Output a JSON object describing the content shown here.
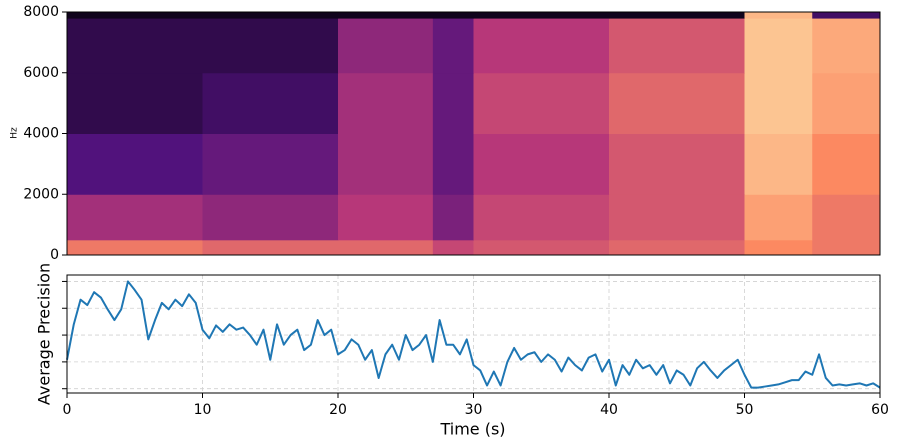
{
  "chart_data": [
    {
      "type": "heatmap",
      "ylabel": "Hz",
      "ylim": [
        0,
        8000
      ],
      "yticks": [
        0,
        2000,
        4000,
        6000,
        8000
      ],
      "xlim": [
        0,
        60
      ],
      "xbins": [
        0,
        10,
        20,
        27,
        30,
        40,
        50,
        55,
        60
      ],
      "ybins": [
        0,
        500,
        2000,
        4000,
        6000,
        7800,
        8000
      ],
      "colormap": [
        "#000004",
        "#51127c",
        "#b73779",
        "#fc8961",
        "#fcfdbf"
      ],
      "z": [
        [
          0.7,
          0.65,
          0.65,
          0.55,
          0.6,
          0.65,
          0.75,
          0.7
        ],
        [
          0.45,
          0.4,
          0.5,
          0.35,
          0.55,
          0.6,
          0.8,
          0.7
        ],
        [
          0.25,
          0.3,
          0.45,
          0.3,
          0.5,
          0.6,
          0.85,
          0.75
        ],
        [
          0.15,
          0.2,
          0.45,
          0.3,
          0.55,
          0.65,
          0.88,
          0.8
        ],
        [
          0.15,
          0.15,
          0.4,
          0.3,
          0.5,
          0.6,
          0.88,
          0.82
        ],
        [
          0.05,
          0.05,
          0.05,
          0.05,
          0.05,
          0.05,
          0.85,
          0.2
        ]
      ]
    },
    {
      "type": "line",
      "xlabel": "Time (s)",
      "ylabel": "Average Precision",
      "xlim": [
        0,
        60
      ],
      "xticks": [
        0,
        10,
        20,
        30,
        40,
        50,
        60
      ],
      "ylim": [
        -0.04,
        1.06
      ],
      "yticks": [
        0,
        0.25,
        0.5,
        0.75,
        1
      ],
      "show_ytick_labels": false,
      "grid": true,
      "x": [
        0,
        0.5,
        1,
        1.5,
        2,
        2.5,
        3,
        3.5,
        4,
        4.5,
        5,
        5.5,
        6,
        6.5,
        7,
        7.5,
        8,
        8.5,
        9,
        9.5,
        10,
        10.5,
        11,
        11.5,
        12,
        12.5,
        13,
        13.5,
        14,
        14.5,
        15,
        15.5,
        16,
        16.5,
        17,
        17.5,
        18,
        18.5,
        19,
        19.5,
        20,
        20.5,
        21,
        21.5,
        22,
        22.5,
        23,
        23.5,
        24,
        24.5,
        25,
        25.5,
        26,
        26.5,
        27,
        27.5,
        28,
        28.5,
        29,
        29.5,
        30,
        30.5,
        31,
        31.5,
        32,
        32.5,
        33,
        33.5,
        34,
        34.5,
        35,
        35.5,
        36,
        36.5,
        37,
        37.5,
        38,
        38.5,
        39,
        39.5,
        40,
        40.5,
        41,
        41.5,
        42,
        42.5,
        43,
        43.5,
        44,
        44.5,
        45,
        45.5,
        46,
        46.5,
        47,
        47.5,
        48,
        48.5,
        49,
        49.5,
        50,
        50.5,
        51,
        51.5,
        52,
        52.5,
        53,
        53.5,
        54,
        54.5,
        55,
        55.5,
        56,
        56.5,
        57,
        57.5,
        58,
        58.5,
        59,
        59.5,
        60
      ],
      "series": [
        {
          "color": "#1f77b4",
          "values": [
            0.27,
            0.6,
            0.83,
            0.78,
            0.9,
            0.85,
            0.74,
            0.64,
            0.74,
            1.0,
            0.92,
            0.83,
            0.46,
            0.64,
            0.8,
            0.74,
            0.83,
            0.77,
            0.88,
            0.8,
            0.55,
            0.47,
            0.59,
            0.53,
            0.6,
            0.55,
            0.57,
            0.5,
            0.41,
            0.55,
            0.27,
            0.6,
            0.41,
            0.5,
            0.55,
            0.36,
            0.41,
            0.64,
            0.5,
            0.55,
            0.32,
            0.36,
            0.46,
            0.41,
            0.27,
            0.36,
            0.1,
            0.32,
            0.41,
            0.27,
            0.5,
            0.36,
            0.41,
            0.5,
            0.25,
            0.64,
            0.41,
            0.41,
            0.32,
            0.46,
            0.22,
            0.17,
            0.03,
            0.16,
            0.03,
            0.25,
            0.38,
            0.27,
            0.32,
            0.34,
            0.25,
            0.32,
            0.27,
            0.16,
            0.29,
            0.22,
            0.17,
            0.29,
            0.32,
            0.16,
            0.27,
            0.03,
            0.22,
            0.13,
            0.27,
            0.19,
            0.22,
            0.13,
            0.22,
            0.05,
            0.17,
            0.13,
            0.03,
            0.19,
            0.25,
            0.17,
            0.1,
            0.17,
            0.22,
            0.27,
            0.13,
            0.01,
            0.01,
            0.02,
            0.03,
            0.04,
            0.06,
            0.08,
            0.08,
            0.16,
            0.13,
            0.32,
            0.1,
            0.03,
            0.04,
            0.03,
            0.04,
            0.05,
            0.03,
            0.05,
            0.01
          ]
        }
      ]
    }
  ]
}
